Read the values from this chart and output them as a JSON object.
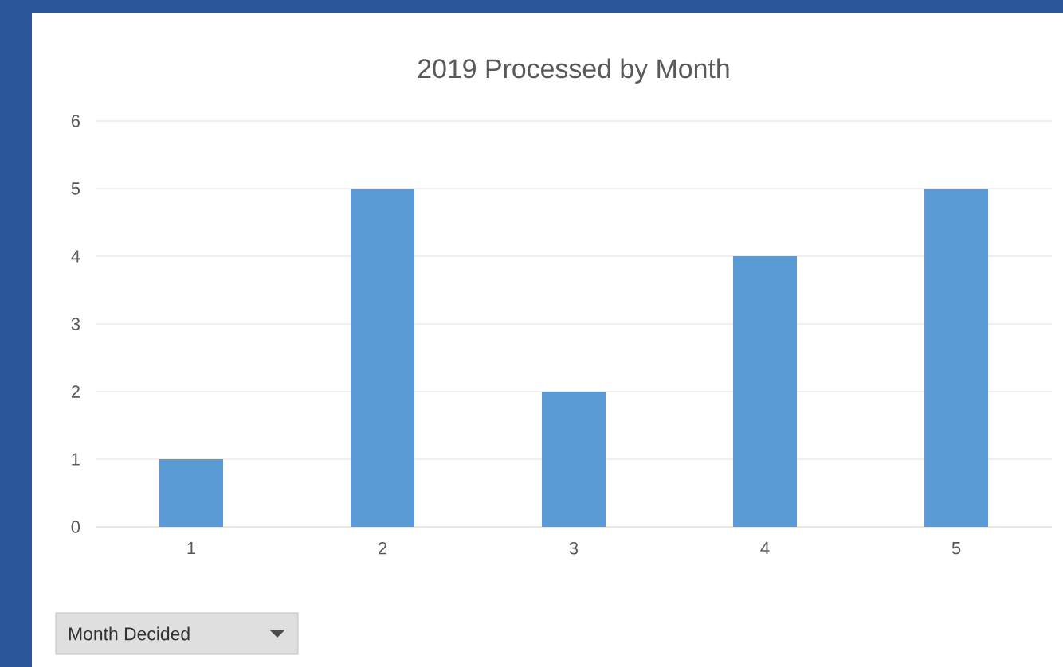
{
  "chart_data": {
    "type": "bar",
    "title": "2019 Processed by Month",
    "categories": [
      "1",
      "2",
      "3",
      "4",
      "5"
    ],
    "values": [
      1,
      5,
      2,
      4,
      5
    ],
    "color": "#5b9bd5",
    "ylim": [
      0,
      6
    ],
    "yticks": [
      0,
      1,
      2,
      3,
      4,
      5,
      6
    ],
    "grid": "y",
    "annotations": [
      "Month Decided"
    ]
  }
}
